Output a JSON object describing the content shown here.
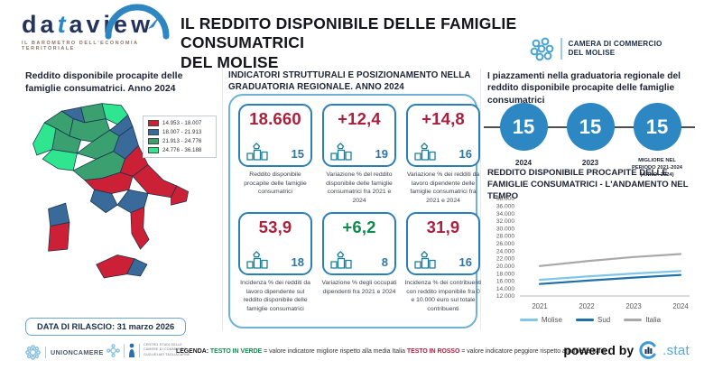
{
  "header": {
    "logo_name": "dataview",
    "logo_tagline": "IL BAROMETRO DELL'ECONOMIA TERRITORIALE",
    "title_line1": "IL REDDITO DISPONIBILE DELLE FAMIGLIE CONSUMATRICI",
    "title_line2": "DEL MOLISE",
    "chamber_line1": "CAMERA DI COMMERCIO",
    "chamber_line2": "DEL MOLISE"
  },
  "map_section": {
    "heading": "Reddito disponibile procapite delle famiglie consumatrici. Anno 2024",
    "legend": [
      {
        "range": "14.953 - 18.007",
        "color": "#cc2036"
      },
      {
        "range": "18.007 - 21.913",
        "color": "#3a6a99"
      },
      {
        "range": "21.913 - 24.776",
        "color": "#3aa06f"
      },
      {
        "range": "24.776 - 36.188",
        "color": "#2fe590"
      }
    ],
    "release_label": "DATA DI RILASCIO: 31 marzo 2026"
  },
  "indicators_section": {
    "heading": "INDICATORI STRUTTURALI E POSIZIONAMENTO NELLA GRADUATORIA REGIONALE. ANNO 2024",
    "cards": [
      {
        "value": "18.660",
        "value_color": "#ab1f3c",
        "rank": "15",
        "label": "Reddito disponibile procapite delle famiglie consumatrici"
      },
      {
        "value": "+12,4",
        "value_color": "#ab1f3c",
        "rank": "19",
        "label": "Variazione % del reddito disponibile delle famiglie consumatrici fra 2021 e 2024"
      },
      {
        "value": "+14,8",
        "value_color": "#ab1f3c",
        "rank": "16",
        "label": "Variazione % dei redditi da lavoro dipendente delle famiglie consumatrici fra 2021 e 2024"
      },
      {
        "value": "53,9",
        "value_color": "#ab1f3c",
        "rank": "18",
        "label": "Incidenza % dei redditi da lavoro dipendente sul reddito disponibile delle famiglie consumatrici"
      },
      {
        "value": "+6,2",
        "value_color": "#0e8a4d",
        "rank": "8",
        "label": "Variazione % degli occupati dipendenti fra 2021 e 2024"
      },
      {
        "value": "31,9",
        "value_color": "#ab1f3c",
        "rank": "16",
        "label": "Incidenza % dei contribuenti con reddito imponibile fra 0 e 10.000 euro sul totale contribuenti"
      }
    ]
  },
  "rankings_section": {
    "heading": "I piazzamenti nella graduatoria regionale del reddito disponibile procapite delle famiglie consumatrici",
    "placements": [
      {
        "value": "15",
        "label": "2024"
      },
      {
        "value": "15",
        "label": "2023"
      },
      {
        "value": "15",
        "label": "MIGLIORE NEL PERIODO 2021-2024 (ANNO: 2024)"
      }
    ]
  },
  "chart_section": {
    "heading": "REDDITO DISPONIBILE PROCAPITE DELLE FAMIGLIE CONSUMATRICI - L'ANDAMENTO NEL TEMPO"
  },
  "chart_data": {
    "type": "line",
    "x": [
      "2021",
      "2022",
      "2023",
      "2024"
    ],
    "series": [
      {
        "name": "Molise",
        "color": "#7fc6e8",
        "values": [
          16300,
          17200,
          18000,
          18660
        ]
      },
      {
        "name": "Sud",
        "color": "#1f6fa8",
        "values": [
          15200,
          16100,
          16900,
          17600
        ]
      },
      {
        "name": "Italia",
        "color": "#a9a9a9",
        "values": [
          20000,
          21300,
          22400,
          23200
        ]
      }
    ],
    "ylim": [
      12000,
      38000
    ],
    "ytick_step": 2000,
    "xlabel": "",
    "ylabel": "",
    "grid": false,
    "legend_position": "bottom"
  },
  "footer": {
    "unioncamere_label": "UNIONCAMERE",
    "tagliacarne_line1": "CENTRO STUDI DELLE",
    "tagliacarne_line2": "CAMERE DI COMMERCIO",
    "tagliacarne_line3": "GUGLIELMO TAGLIACARNE",
    "legend_prefix": "LEGENDA:",
    "legend_green_label": "TESTO IN VERDE",
    "legend_green_text": "= valore indicatore migliore rispetto alla media Italia",
    "legend_red_label": "TESTO IN ROSSO",
    "legend_red_text": "= valore indicatore peggiore rispetto alla media Italia",
    "powered_by": "powered by",
    "stat_label": ".stat"
  },
  "icons": {
    "gauge-icon": "dataview speedometer arc",
    "chamber-emblem-icon": "light blue swirl cluster",
    "podium-icon": "ranking podium with crown",
    "gear-flower-icon": "unioncamere emblem",
    "bar-chart-icon": "i.stat bars in circle"
  }
}
